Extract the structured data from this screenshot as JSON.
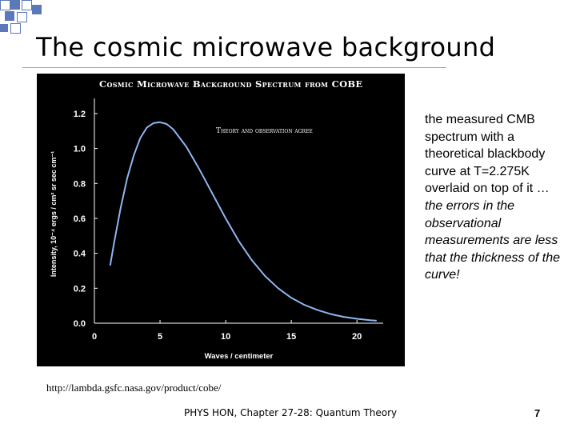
{
  "slide": {
    "title": "The cosmic microwave background",
    "text_normal": "the measured CMB spectrum with a theoretical blackbody curve at T=2.275K overlaid on top of it … ",
    "text_italic": "the errors in the observational measurements are less that the thickness of the curve!",
    "source_url": "http://lambda.gsfc.nasa.gov/product/cobe/",
    "footer": "PHYS HON, Chapter 27-28: Quantum Theory",
    "page_number": "7"
  },
  "colors": {
    "corner_squares": "#5b79b8",
    "figure_background": "#000000",
    "curve": "#8fb6f0",
    "figure_text": "#ffffff"
  },
  "chart_data": {
    "type": "line",
    "title": "Cosmic Microwave Background Spectrum from COBE",
    "annotation": "Theory and observation agree",
    "xlabel": "Waves / centimeter",
    "ylabel": "Intensity, 10⁻⁴ ergs / cm² sr sec cm⁻¹",
    "xlim": [
      0,
      22
    ],
    "ylim": [
      0,
      1.25
    ],
    "x_ticks": [
      "0",
      "5",
      "10",
      "15",
      "20"
    ],
    "y_ticks": [
      "0.0",
      "0.2",
      "0.4",
      "0.6",
      "0.8",
      "1.0",
      "1.2"
    ],
    "grid": false,
    "series": [
      {
        "x": [
          1.2,
          1.5,
          2,
          2.5,
          3,
          3.5,
          4,
          4.5,
          5.0,
          5.5,
          6,
          7,
          8,
          9,
          10,
          11,
          12,
          13,
          14,
          15,
          16,
          17,
          18,
          19,
          20,
          21,
          21.5
        ],
        "values": [
          0.33,
          0.46,
          0.66,
          0.83,
          0.96,
          1.06,
          1.12,
          1.145,
          1.15,
          1.14,
          1.11,
          1.01,
          0.88,
          0.74,
          0.6,
          0.47,
          0.36,
          0.27,
          0.2,
          0.145,
          0.105,
          0.075,
          0.052,
          0.036,
          0.025,
          0.017,
          0.014
        ]
      }
    ]
  }
}
